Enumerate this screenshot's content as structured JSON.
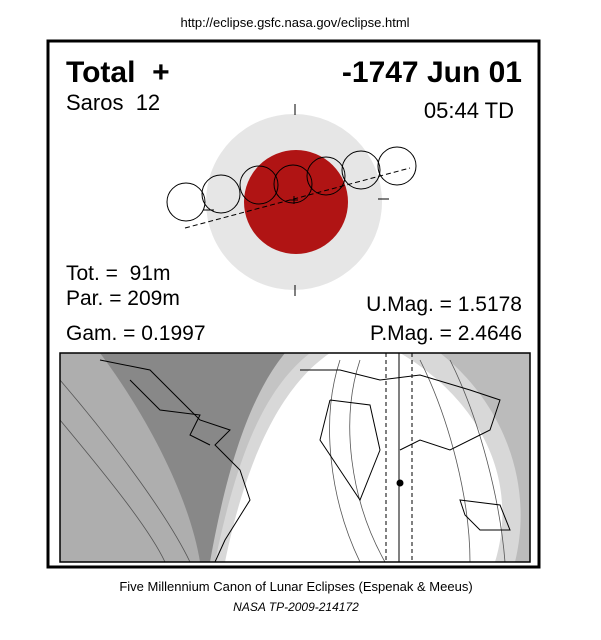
{
  "header": {
    "url": "http://eclipse.gsfc.nasa.gov/eclipse.html"
  },
  "eclipse": {
    "type": "Total  +",
    "date": "-1747 Jun 01",
    "saros": "Saros  12",
    "time": "05:44 TD",
    "total_duration": "Tot. =  91m",
    "partial_duration": "Par. = 209m",
    "gamma": "Gam. = 0.1997",
    "umbral_magnitude": "U.Mag. = 1.5178",
    "penumbral_magnitude": "P.Mag. = 2.4646"
  },
  "footer": {
    "line1": "Five Millennium Canon of Lunar Eclipses (Espenak & Meeus)",
    "line2": "NASA TP-2009-214172"
  }
}
